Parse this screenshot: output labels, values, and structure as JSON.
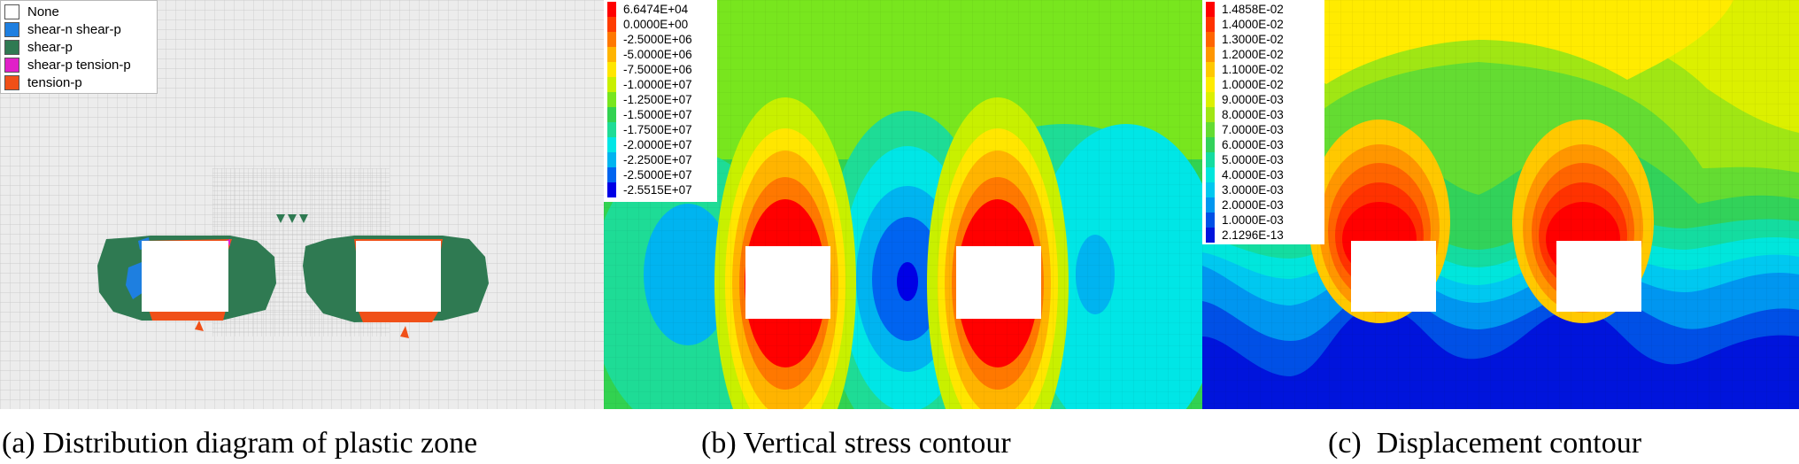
{
  "panels": [
    {
      "caption": "(a) Distribution diagram of plastic zone",
      "legend": [
        {
          "label": "None",
          "color": "#ffffff"
        },
        {
          "label": "shear-n shear-p",
          "color": "#1e7fe0"
        },
        {
          "label": "shear-p",
          "color": "#2f7a52"
        },
        {
          "label": "shear-p tension-p",
          "color": "#e020c8"
        },
        {
          "label": "tension-p",
          "color": "#f05018"
        }
      ]
    },
    {
      "caption": "(b) Vertical stress contour",
      "legend": [
        {
          "label": "6.6474E+04",
          "color": "#ff0000"
        },
        {
          "label": "0.0000E+00",
          "color": "#ff3c00"
        },
        {
          "label": "-2.5000E+06",
          "color": "#ff7800"
        },
        {
          "label": "-5.0000E+06",
          "color": "#ffb400"
        },
        {
          "label": "-7.5000E+06",
          "color": "#ffe600"
        },
        {
          "label": "-1.0000E+07",
          "color": "#c8f000"
        },
        {
          "label": "-1.2500E+07",
          "color": "#78e61e"
        },
        {
          "label": "-1.5000E+07",
          "color": "#32d250"
        },
        {
          "label": "-1.7500E+07",
          "color": "#1edc96"
        },
        {
          "label": "-2.0000E+07",
          "color": "#00e6e6"
        },
        {
          "label": "-2.2500E+07",
          "color": "#00b4f0"
        },
        {
          "label": "-2.5000E+07",
          "color": "#0064f0"
        },
        {
          "label": "-2.5515E+07",
          "color": "#0000e6"
        }
      ]
    },
    {
      "caption": "(c)  Displacement contour",
      "legend": [
        {
          "label": "1.4858E-02",
          "color": "#ff0000"
        },
        {
          "label": "1.4000E-02",
          "color": "#ff3200"
        },
        {
          "label": "1.3000E-02",
          "color": "#ff6400"
        },
        {
          "label": "1.2000E-02",
          "color": "#ff9600"
        },
        {
          "label": "1.1000E-02",
          "color": "#ffc800"
        },
        {
          "label": "1.0000E-02",
          "color": "#ffeb00"
        },
        {
          "label": "9.0000E-03",
          "color": "#dcf000"
        },
        {
          "label": "8.0000E-03",
          "color": "#a0e614"
        },
        {
          "label": "7.0000E-03",
          "color": "#64dc32"
        },
        {
          "label": "6.0000E-03",
          "color": "#32d25a"
        },
        {
          "label": "5.0000E-03",
          "color": "#14dca0"
        },
        {
          "label": "4.0000E-03",
          "color": "#00e6dc"
        },
        {
          "label": "3.0000E-03",
          "color": "#00c8f0"
        },
        {
          "label": "2.0000E-03",
          "color": "#0096f0"
        },
        {
          "label": "1.0000E-03",
          "color": "#0050e6"
        },
        {
          "label": "2.1296E-13",
          "color": "#0014dc"
        }
      ]
    }
  ]
}
